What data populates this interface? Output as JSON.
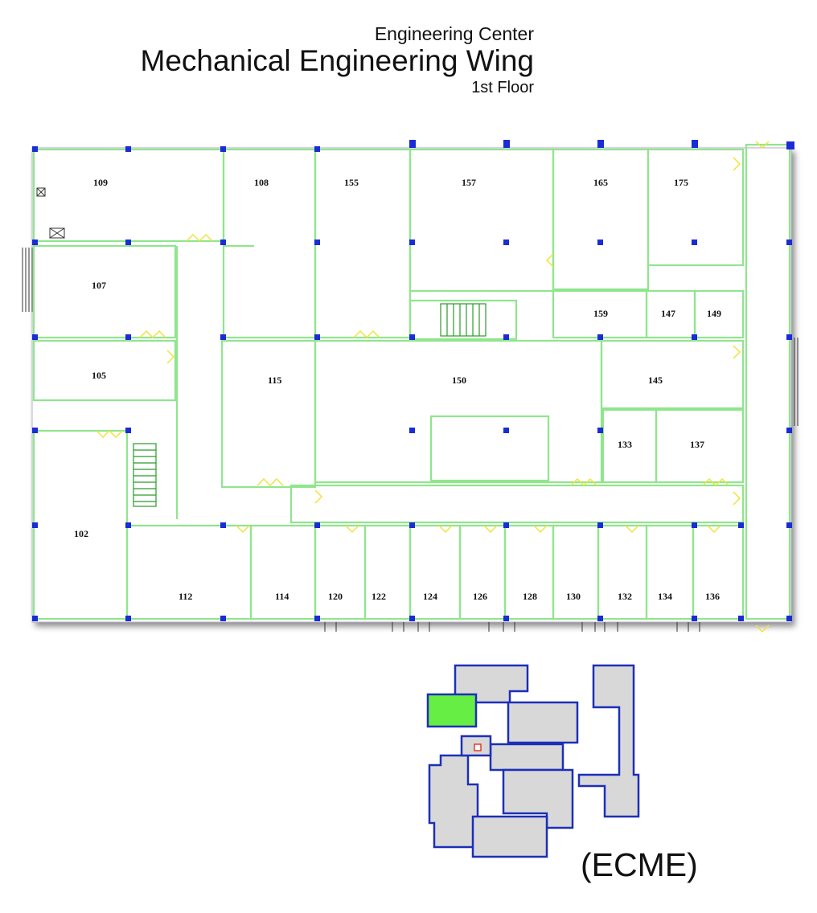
{
  "header": {
    "building": "Engineering Center",
    "wing": "Mechanical Engineering Wing",
    "floor": "1st Floor"
  },
  "rooms": {
    "r109": "109",
    "r108": "108",
    "r155": "155",
    "r157": "157",
    "r165": "165",
    "r175": "175",
    "r107": "107",
    "r159": "159",
    "r147": "147",
    "r149": "149",
    "r105": "105",
    "r115": "115",
    "r150": "150",
    "r145": "145",
    "r133": "133",
    "r137": "137",
    "r102": "102",
    "r112": "112",
    "r114": "114",
    "r120": "120",
    "r122": "122",
    "r124": "124",
    "r126": "126",
    "r128": "128",
    "r130": "130",
    "r132": "132",
    "r134": "134",
    "r136": "136"
  },
  "key_map": {
    "label": "(ECME)",
    "highlight_color": "#66ee44",
    "building_fill": "#d8d8d8",
    "building_outline": "#1c2fb8",
    "you_are_here_color": "#e23b2b"
  },
  "colors": {
    "walls": "#8fe68c",
    "columns": "#1a2cd6",
    "doors": "#f2e23a"
  }
}
